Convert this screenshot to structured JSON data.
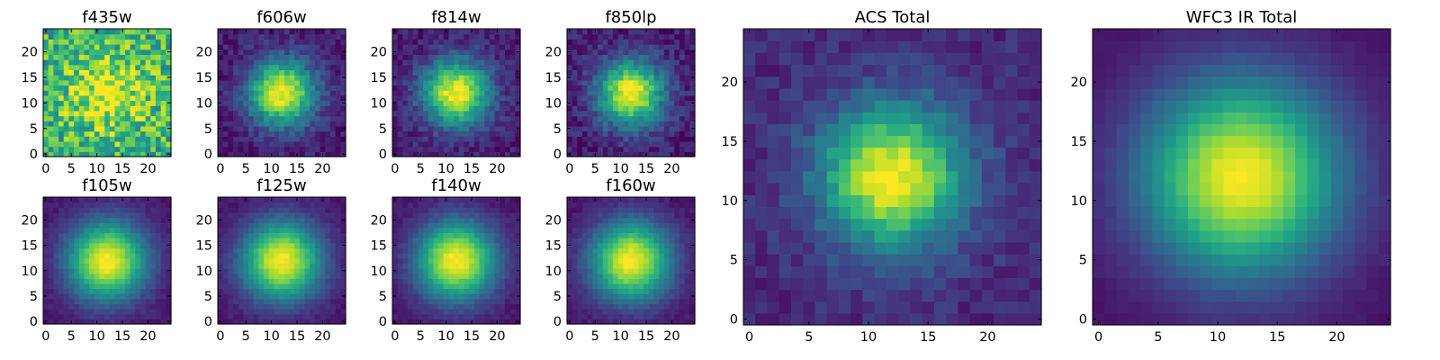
{
  "colormap": [
    "#440154",
    "#482878",
    "#3e4989",
    "#31688e",
    "#26828e",
    "#1f9e89",
    "#35b779",
    "#6ece58",
    "#b5de2b",
    "#fde725"
  ],
  "chart_data": [
    {
      "type": "heatmap",
      "title": "f435w",
      "grid": "25x25",
      "xticks": [
        0,
        5,
        10,
        15,
        20
      ],
      "yticks": [
        0,
        5,
        10,
        15,
        20
      ],
      "center": [
        12,
        12
      ],
      "peak_level": 0.95,
      "background_level": 0.62,
      "spread_pixels": 6,
      "noise": 0.25
    },
    {
      "type": "heatmap",
      "title": "f606w",
      "grid": "25x25",
      "xticks": [
        0,
        5,
        10,
        15,
        20
      ],
      "yticks": [
        0,
        5,
        10,
        15,
        20
      ],
      "center": [
        12,
        12
      ],
      "peak_level": 1.0,
      "background_level": 0.08,
      "spread_pixels": 4.5,
      "noise": 0.09
    },
    {
      "type": "heatmap",
      "title": "f814w",
      "grid": "25x25",
      "xticks": [
        0,
        5,
        10,
        15,
        20
      ],
      "yticks": [
        0,
        5,
        10,
        15,
        20
      ],
      "center": [
        12,
        12
      ],
      "peak_level": 1.0,
      "background_level": 0.08,
      "spread_pixels": 4.5,
      "noise": 0.09
    },
    {
      "type": "heatmap",
      "title": "f850lp",
      "grid": "25x25",
      "xticks": [
        0,
        5,
        10,
        15,
        20
      ],
      "yticks": [
        0,
        5,
        10,
        15,
        20
      ],
      "center": [
        12,
        12
      ],
      "peak_level": 1.0,
      "background_level": 0.08,
      "spread_pixels": 4.5,
      "noise": 0.1
    },
    {
      "type": "heatmap",
      "title": "f105w",
      "grid": "25x25",
      "xticks": [
        0,
        5,
        10,
        15,
        20
      ],
      "yticks": [
        0,
        5,
        10,
        15,
        20
      ],
      "center": [
        12,
        12
      ],
      "peak_level": 1.0,
      "background_level": 0.05,
      "spread_pixels": 5.5,
      "noise": 0.035
    },
    {
      "type": "heatmap",
      "title": "f125w",
      "grid": "25x25",
      "xticks": [
        0,
        5,
        10,
        15,
        20
      ],
      "yticks": [
        0,
        5,
        10,
        15,
        20
      ],
      "center": [
        12,
        12
      ],
      "peak_level": 1.0,
      "background_level": 0.05,
      "spread_pixels": 5.5,
      "noise": 0.035
    },
    {
      "type": "heatmap",
      "title": "f140w",
      "grid": "25x25",
      "xticks": [
        0,
        5,
        10,
        15,
        20
      ],
      "yticks": [
        0,
        5,
        10,
        15,
        20
      ],
      "center": [
        12,
        12
      ],
      "peak_level": 1.0,
      "background_level": 0.05,
      "spread_pixels": 5.5,
      "noise": 0.035
    },
    {
      "type": "heatmap",
      "title": "f160w",
      "grid": "25x25",
      "xticks": [
        0,
        5,
        10,
        15,
        20
      ],
      "yticks": [
        0,
        5,
        10,
        15,
        20
      ],
      "center": [
        12,
        12
      ],
      "peak_level": 1.0,
      "background_level": 0.05,
      "spread_pixels": 5.5,
      "noise": 0.035
    },
    {
      "type": "heatmap",
      "title": "ACS Total",
      "grid": "25x25",
      "xticks": [
        0,
        5,
        10,
        15,
        20
      ],
      "yticks": [
        0,
        5,
        10,
        15,
        20
      ],
      "center": [
        12,
        12
      ],
      "peak_level": 1.0,
      "background_level": 0.12,
      "spread_pixels": 4.2,
      "noise": 0.07
    },
    {
      "type": "heatmap",
      "title": "WFC3 IR Total",
      "grid": "25x25",
      "xticks": [
        0,
        5,
        10,
        15,
        20
      ],
      "yticks": [
        0,
        5,
        10,
        15,
        20
      ],
      "center": [
        12,
        12
      ],
      "peak_level": 1.0,
      "background_level": 0.04,
      "spread_pixels": 5.8,
      "noise": 0.015
    }
  ]
}
